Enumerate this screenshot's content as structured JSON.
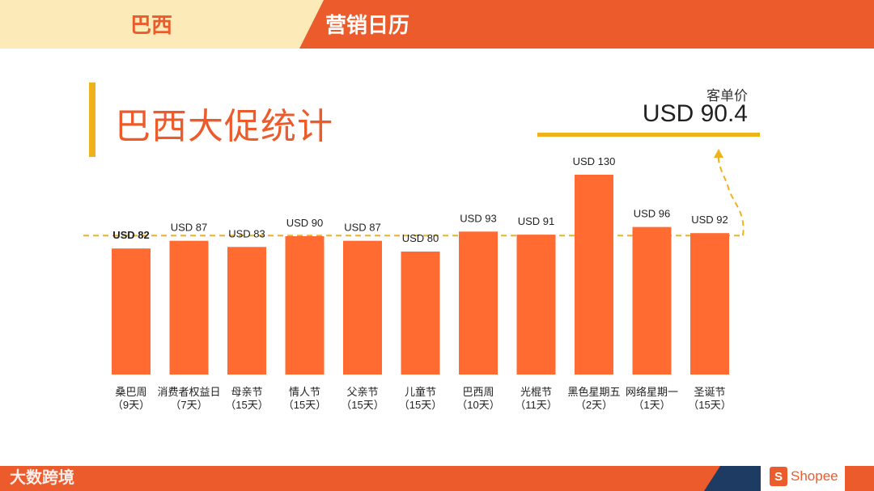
{
  "header": {
    "country": "巴西",
    "title": "营销日历"
  },
  "page_title": "巴西大促统计",
  "aov": {
    "label": "客单价",
    "value": "USD 90.4"
  },
  "footer": {
    "watermark": "大数跨境",
    "logo_text": "Shopee",
    "logo_glyph": "S"
  },
  "colors": {
    "bar": "#ff6b30",
    "accent": "#ec5b2b",
    "gold": "#f0b21c"
  },
  "chart_data": {
    "type": "bar",
    "categories": [
      "桑巴周",
      "消费者权益日",
      "母亲节",
      "情人节",
      "父亲节",
      "儿童节",
      "巴西周",
      "光棍节",
      "黑色星期五",
      "网络星期一",
      "圣诞节"
    ],
    "durations": [
      "（9天）",
      "（7天）",
      "（15天）",
      "（15天）",
      "（15天）",
      "（15天）",
      "（10天）",
      "（11天）",
      "（2天）",
      "（1天）",
      "（15天）"
    ],
    "value_labels": [
      "USD 82",
      "USD 87",
      "USD 83",
      "USD 90",
      "USD 87",
      "USD 80",
      "USD 93",
      "USD 91",
      "USD 130",
      "USD 96",
      "USD 92"
    ],
    "values": [
      82,
      87,
      83,
      90,
      87,
      80,
      93,
      91,
      130,
      96,
      92
    ],
    "reference_line": 90.4,
    "unit": "USD"
  }
}
